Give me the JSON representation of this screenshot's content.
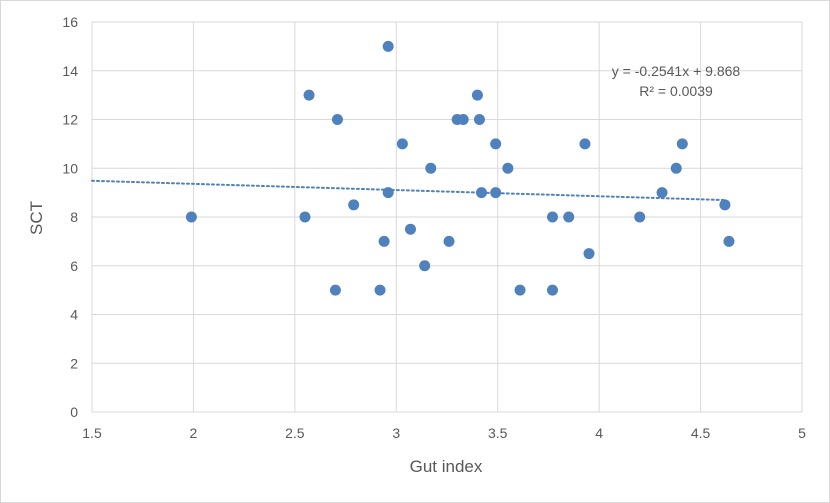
{
  "chart_data": {
    "type": "scatter",
    "title": "",
    "xlabel": "Gut index",
    "ylabel": "SCT",
    "xlim": [
      1.5,
      5
    ],
    "ylim": [
      0,
      16
    ],
    "xticks": [
      1.5,
      2,
      2.5,
      3,
      3.5,
      4,
      4.5,
      5
    ],
    "xtick_labels": [
      "1.5",
      "2",
      "2.5",
      "3",
      "3.5",
      "4",
      "4.5",
      "5"
    ],
    "yticks": [
      0,
      2,
      4,
      6,
      8,
      10,
      12,
      14,
      16
    ],
    "ytick_labels": [
      "0",
      "2",
      "4",
      "6",
      "8",
      "10",
      "12",
      "14",
      "16"
    ],
    "grid": true,
    "legend": "none",
    "colors": {
      "points": "#4f81bd",
      "trendline": "#4f81bd",
      "grid": "#d9d9d9",
      "text": "#595959"
    },
    "series": [
      {
        "points": [
          [
            1.99,
            8
          ],
          [
            2.55,
            8
          ],
          [
            2.57,
            13
          ],
          [
            2.7,
            5
          ],
          [
            2.71,
            12
          ],
          [
            2.79,
            8.5
          ],
          [
            2.92,
            5
          ],
          [
            2.94,
            7
          ],
          [
            2.96,
            15
          ],
          [
            2.96,
            9
          ],
          [
            3.03,
            11
          ],
          [
            3.07,
            7.5
          ],
          [
            3.14,
            6
          ],
          [
            3.17,
            10
          ],
          [
            3.26,
            7
          ],
          [
            3.3,
            12
          ],
          [
            3.33,
            12
          ],
          [
            3.4,
            13
          ],
          [
            3.41,
            12
          ],
          [
            3.42,
            9
          ],
          [
            3.49,
            11
          ],
          [
            3.49,
            9
          ],
          [
            3.55,
            10
          ],
          [
            3.61,
            5
          ],
          [
            3.77,
            8
          ],
          [
            3.77,
            5
          ],
          [
            3.85,
            8
          ],
          [
            3.93,
            11
          ],
          [
            3.95,
            6.5
          ],
          [
            4.2,
            8
          ],
          [
            4.31,
            9
          ],
          [
            4.38,
            10
          ],
          [
            4.41,
            11
          ],
          [
            4.62,
            8.5
          ],
          [
            4.64,
            7
          ]
        ]
      }
    ],
    "trendline": {
      "type": "linear",
      "slope": -0.2541,
      "intercept": 9.868,
      "x_range": [
        1.5,
        4.62
      ],
      "equation": "y = -0.2541x + 9.868",
      "r2": "R² = 0.0039"
    }
  }
}
